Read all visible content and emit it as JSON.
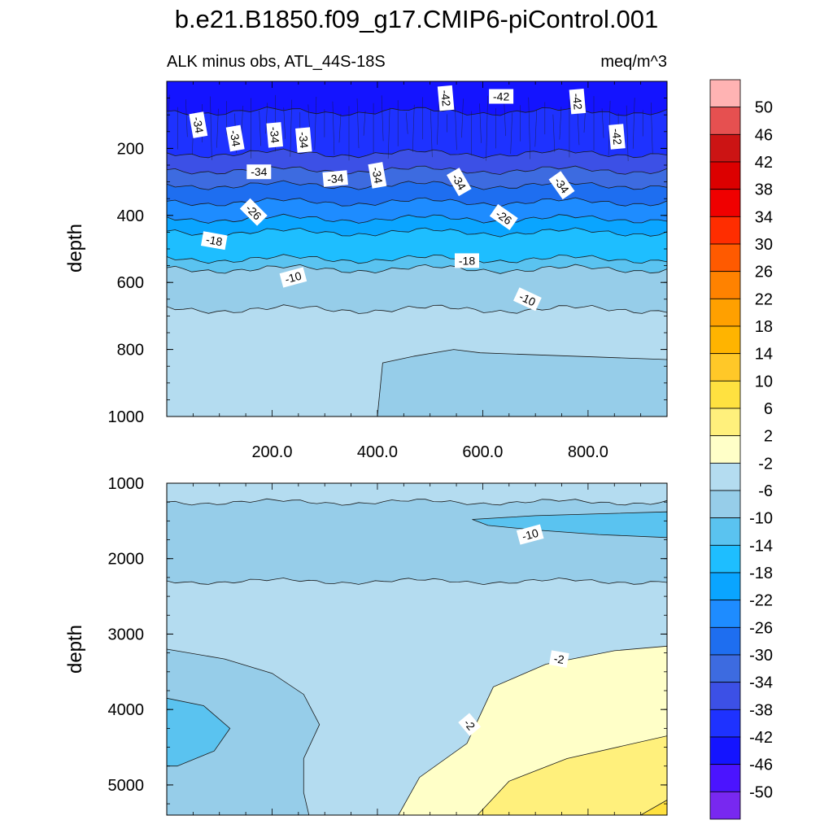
{
  "title": "b.e21.B1850.f09_g17.CMIP6-piControl.001",
  "chart_data": [
    {
      "type": "contour",
      "panel": "upper",
      "left_subtitle": "ALK minus obs, ATL_44S-18S",
      "right_subtitle": "meq/m^3",
      "ylabel": "depth",
      "xlim": [
        0,
        950
      ],
      "ylim": [
        1000,
        0
      ],
      "xticks": [
        200,
        400,
        600,
        800
      ],
      "xtick_labels": [
        "200.0",
        "400.0",
        "600.0",
        "800.0"
      ],
      "yticks": [
        200,
        400,
        600,
        800,
        1000
      ],
      "ytick_labels": [
        "200",
        "400",
        "600",
        "800",
        "1000"
      ],
      "bands": [
        {
          "top": 0,
          "bottom": 90,
          "level": -44
        },
        {
          "top": 90,
          "bottom": 215,
          "level": -40
        },
        {
          "top": 215,
          "bottom": 265,
          "level": -36
        },
        {
          "top": 265,
          "bottom": 310,
          "level": -32
        },
        {
          "top": 310,
          "bottom": 360,
          "level": -28
        },
        {
          "top": 360,
          "bottom": 410,
          "level": -24
        },
        {
          "top": 410,
          "bottom": 450,
          "level": -20
        },
        {
          "top": 450,
          "bottom": 530,
          "level": -16
        },
        {
          "top": 530,
          "bottom": 560,
          "level": -12
        },
        {
          "top": 560,
          "bottom": 680,
          "level": -8
        },
        {
          "top": 680,
          "bottom": 1000,
          "level": -4
        }
      ],
      "regions": [
        {
          "level": -8,
          "points": [
            [
              400,
              1000
            ],
            [
              410,
              840
            ],
            [
              470,
              820
            ],
            [
              545,
              800
            ],
            [
              595,
              810
            ],
            [
              950,
              830
            ],
            [
              950,
              1000
            ]
          ]
        }
      ],
      "contour_labels": [
        {
          "x": 60,
          "depth": 130,
          "text": "-34",
          "angle": 80
        },
        {
          "x": 130,
          "depth": 170,
          "text": "-34",
          "angle": 80
        },
        {
          "x": 205,
          "depth": 160,
          "text": "-34",
          "angle": 85
        },
        {
          "x": 260,
          "depth": 175,
          "text": "-34",
          "angle": 85
        },
        {
          "x": 175,
          "depth": 270,
          "text": "-34",
          "angle": 0
        },
        {
          "x": 320,
          "depth": 290,
          "text": "-34",
          "angle": -5
        },
        {
          "x": 400,
          "depth": 280,
          "text": "-34",
          "angle": 80
        },
        {
          "x": 555,
          "depth": 300,
          "text": "-34",
          "angle": 60
        },
        {
          "x": 750,
          "depth": 310,
          "text": "-34",
          "angle": 55
        },
        {
          "x": 530,
          "depth": 50,
          "text": "-42",
          "angle": 85
        },
        {
          "x": 635,
          "depth": 45,
          "text": "-42",
          "angle": 0
        },
        {
          "x": 780,
          "depth": 60,
          "text": "-42",
          "angle": 85
        },
        {
          "x": 855,
          "depth": 165,
          "text": "-42",
          "angle": 85
        },
        {
          "x": 165,
          "depth": 390,
          "text": "-26",
          "angle": 45
        },
        {
          "x": 640,
          "depth": 405,
          "text": "-26",
          "angle": 35
        },
        {
          "x": 90,
          "depth": 475,
          "text": "-18",
          "angle": 10
        },
        {
          "x": 570,
          "depth": 535,
          "text": "-18",
          "angle": 0
        },
        {
          "x": 240,
          "depth": 585,
          "text": "-10",
          "angle": -15
        },
        {
          "x": 685,
          "depth": 650,
          "text": "-10",
          "angle": 25
        }
      ]
    },
    {
      "type": "contour",
      "panel": "lower",
      "ylabel": "depth",
      "xlim": [
        0,
        950
      ],
      "ylim": [
        5400,
        1000
      ],
      "yticks": [
        1000,
        2000,
        3000,
        4000,
        5000
      ],
      "ytick_labels": [
        "1000",
        "2000",
        "3000",
        "4000",
        "5000"
      ],
      "bands": [
        {
          "top": 1000,
          "bottom": 1250,
          "level": -4
        },
        {
          "top": 1250,
          "bottom": 2300,
          "level": -8
        },
        {
          "top": 2300,
          "bottom": 5400,
          "level": -4
        }
      ],
      "regions": [
        {
          "level": -8,
          "points": [
            [
              0,
              3200
            ],
            [
              110,
              3330
            ],
            [
              200,
              3520
            ],
            [
              260,
              3800
            ],
            [
              290,
              4200
            ],
            [
              260,
              4650
            ],
            [
              260,
              5100
            ],
            [
              270,
              5400
            ],
            [
              0,
              5400
            ]
          ]
        },
        {
          "level": -12,
          "points": [
            [
              0,
              3850
            ],
            [
              70,
              3950
            ],
            [
              120,
              4250
            ],
            [
              90,
              4550
            ],
            [
              20,
              4750
            ],
            [
              0,
              4750
            ]
          ]
        },
        {
          "level": -12,
          "points": [
            [
              580,
              1480
            ],
            [
              700,
              1430
            ],
            [
              950,
              1380
            ],
            [
              950,
              1720
            ],
            [
              820,
              1680
            ],
            [
              700,
              1620
            ],
            [
              610,
              1560
            ]
          ]
        },
        {
          "level": 0,
          "points": [
            [
              440,
              5400
            ],
            [
              480,
              4900
            ],
            [
              570,
              4450
            ],
            [
              620,
              3700
            ],
            [
              720,
              3400
            ],
            [
              850,
              3220
            ],
            [
              950,
              3160
            ],
            [
              950,
              5400
            ]
          ]
        },
        {
          "level": 4,
          "points": [
            [
              590,
              5400
            ],
            [
              650,
              4950
            ],
            [
              760,
              4650
            ],
            [
              950,
              4350
            ],
            [
              950,
              5400
            ]
          ]
        },
        {
          "level": 8,
          "points": [
            [
              900,
              5400
            ],
            [
              950,
              5200
            ],
            [
              950,
              5400
            ]
          ]
        }
      ],
      "contour_labels": [
        {
          "x": 690,
          "depth": 1680,
          "text": "-10",
          "angle": -15
        },
        {
          "x": 745,
          "depth": 3330,
          "text": "-2",
          "angle": 10
        },
        {
          "x": 575,
          "depth": 4200,
          "text": "-2",
          "angle": 50
        }
      ]
    }
  ],
  "colorbar": {
    "labels": [
      "50",
      "46",
      "42",
      "38",
      "34",
      "30",
      "26",
      "22",
      "18",
      "14",
      "10",
      "6",
      "2",
      "-2",
      "-6",
      "-10",
      "-14",
      "-18",
      "-22",
      "-26",
      "-30",
      "-34",
      "-38",
      "-42",
      "-46",
      "-50"
    ],
    "colors": [
      "#ffb3b3",
      "#e65050",
      "#cc1414",
      "#dc0000",
      "#f00000",
      "#ff2d00",
      "#ff5a00",
      "#ff8200",
      "#ffa000",
      "#ffb400",
      "#ffc828",
      "#ffe140",
      "#fff07c",
      "#ffffc8",
      "#b4dcf0",
      "#96cde9",
      "#5ac3f0",
      "#1ebeff",
      "#0aa5ff",
      "#1e8cff",
      "#1e6ef0",
      "#3d6be0",
      "#3c50e6",
      "#1e32ff",
      "#1414ff",
      "#4b14ff",
      "#7828f0"
    ]
  }
}
